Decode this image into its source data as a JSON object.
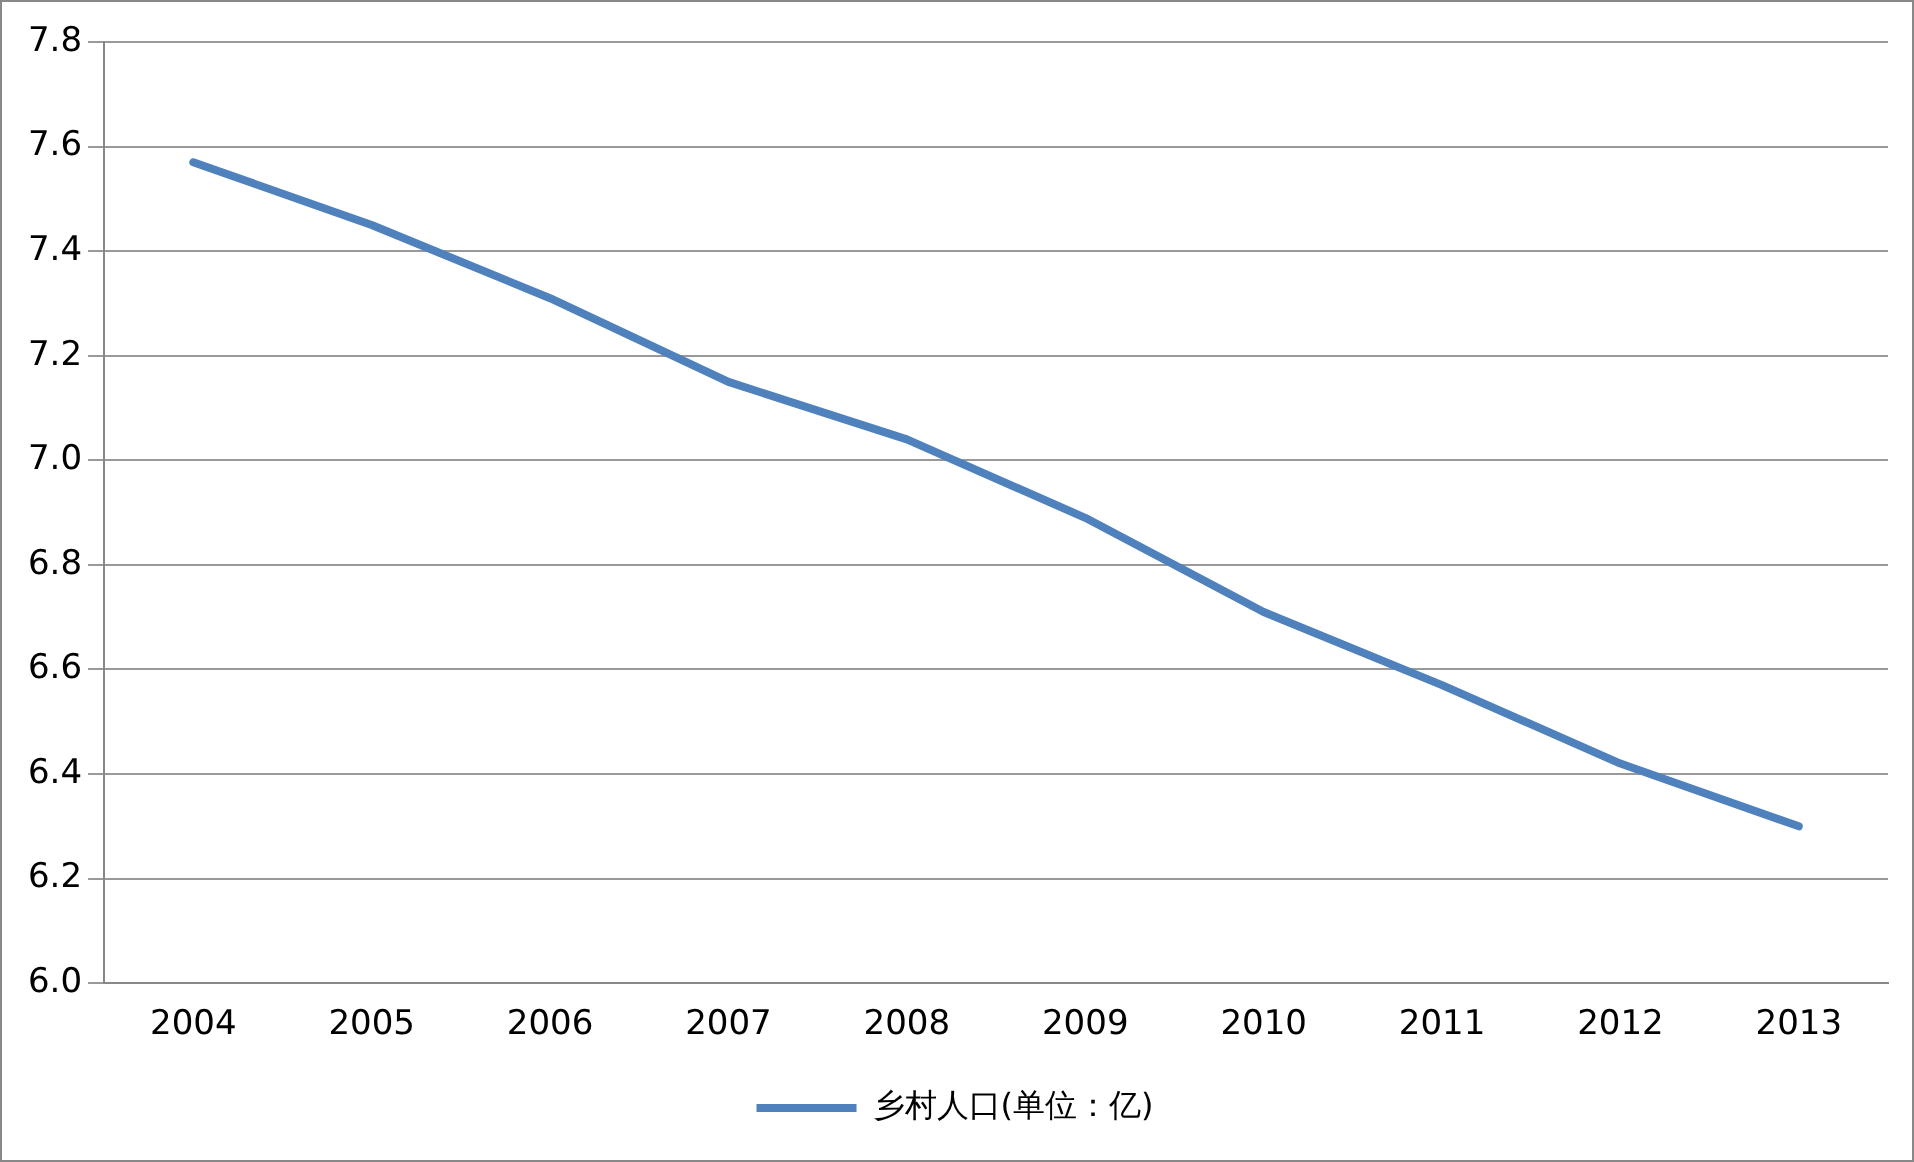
{
  "chart_data": {
    "type": "line",
    "categories": [
      "2004",
      "2005",
      "2006",
      "2007",
      "2008",
      "2009",
      "2010",
      "2011",
      "2012",
      "2013"
    ],
    "series": [
      {
        "name": "乡村人口(单位：亿)",
        "color": "#4f81bd",
        "values": [
          7.57,
          7.45,
          7.31,
          7.15,
          7.04,
          6.89,
          6.71,
          6.57,
          6.42,
          6.3
        ]
      }
    ],
    "ylim": [
      6.0,
      7.8
    ],
    "yticks": [
      {
        "value": 6.0,
        "label": "6.0"
      },
      {
        "value": 6.2,
        "label": "6.2"
      },
      {
        "value": 6.4,
        "label": "6.4"
      },
      {
        "value": 6.6,
        "label": "6.6"
      },
      {
        "value": 6.8,
        "label": "6.8"
      },
      {
        "value": 7.0,
        "label": "7.0"
      },
      {
        "value": 7.2,
        "label": "7.2"
      },
      {
        "value": 7.4,
        "label": "7.4"
      },
      {
        "value": 7.6,
        "label": "7.6"
      },
      {
        "value": 7.8,
        "label": "7.8"
      }
    ],
    "grid": "y",
    "legend": "bottom",
    "marker": "none",
    "line_style": "solid"
  }
}
